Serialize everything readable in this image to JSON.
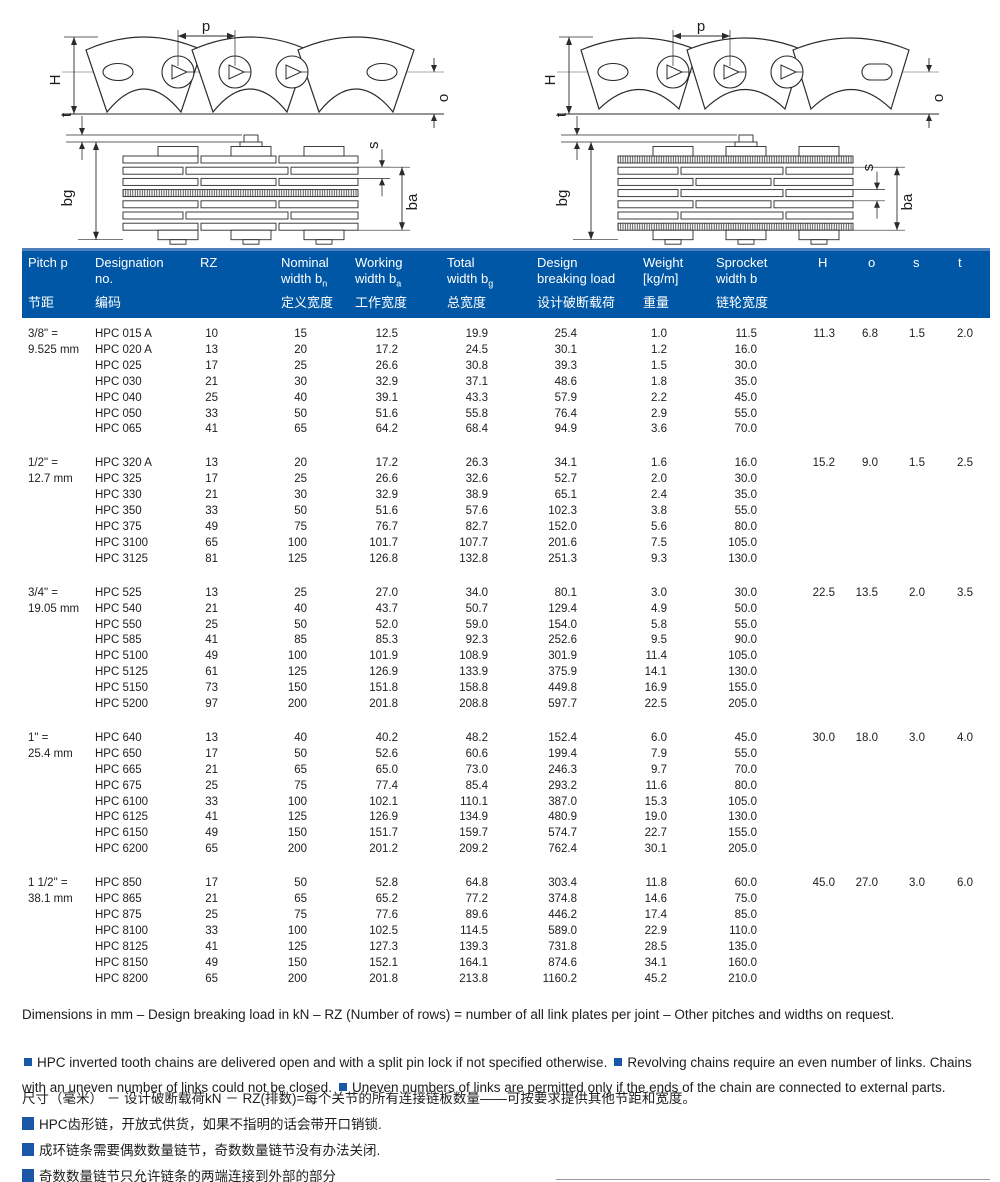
{
  "colors": {
    "header_bg": "#0057a6",
    "header_top_strip": "#4c80ba",
    "accent_blue": "#1b57a7",
    "body_text": "#1d1d1b"
  },
  "diagram": {
    "labels": {
      "p": "p",
      "H": "H",
      "o": "o",
      "t": "t",
      "s": "s",
      "bg": "bg",
      "ba": "ba"
    }
  },
  "table": {
    "header": {
      "cols": [
        {
          "en1": "Pitch p",
          "en2": "",
          "sub": "",
          "zh": "节距"
        },
        {
          "en1": "Designation",
          "en2": "no.",
          "sub": "",
          "zh": "编码"
        },
        {
          "en1": "RZ",
          "en2": "",
          "sub": "",
          "zh": ""
        },
        {
          "en1": "Nominal",
          "en2": "width b",
          "sub": "n",
          "zh": "定义宽度"
        },
        {
          "en1": "Working",
          "en2": "width b",
          "sub": "a",
          "zh": "工作宽度"
        },
        {
          "en1": "Total",
          "en2": "width b",
          "sub": "g",
          "zh": "总宽度"
        },
        {
          "en1": "Design",
          "en2": "breaking load",
          "sub": "",
          "zh": "设计破断载荷"
        },
        {
          "en1": "Weight",
          "en2": "[kg/m]",
          "sub": "",
          "zh": "重量"
        },
        {
          "en1": "Sprocket",
          "en2": "width b",
          "sub": "",
          "zh": "链轮宽度"
        },
        {
          "en1": "H",
          "en2": "",
          "sub": "",
          "zh": ""
        },
        {
          "en1": "o",
          "en2": "",
          "sub": "",
          "zh": ""
        },
        {
          "en1": "s",
          "en2": "",
          "sub": "",
          "zh": ""
        },
        {
          "en1": "t",
          "en2": "",
          "sub": "",
          "zh": ""
        }
      ]
    },
    "groups": [
      {
        "pitch": [
          "3/8\" =",
          "9.525 mm"
        ],
        "dims": {
          "H": "11.3",
          "o": "6.8",
          "s": "1.5",
          "t": "2.0"
        },
        "rows": [
          [
            "HPC 015 A",
            "10",
            "15",
            "12.5",
            "19.9",
            "25.4",
            "1.0",
            "11.5"
          ],
          [
            "HPC 020 A",
            "13",
            "20",
            "17.2",
            "24.5",
            "30.1",
            "1.2",
            "16.0"
          ],
          [
            "HPC 025",
            "17",
            "25",
            "26.6",
            "30.8",
            "39.3",
            "1.5",
            "30.0"
          ],
          [
            "HPC 030",
            "21",
            "30",
            "32.9",
            "37.1",
            "48.6",
            "1.8",
            "35.0"
          ],
          [
            "HPC 040",
            "25",
            "40",
            "39.1",
            "43.3",
            "57.9",
            "2.2",
            "45.0"
          ],
          [
            "HPC 050",
            "33",
            "50",
            "51.6",
            "55.8",
            "76.4",
            "2.9",
            "55.0"
          ],
          [
            "HPC 065",
            "41",
            "65",
            "64.2",
            "68.4",
            "94.9",
            "3.6",
            "70.0"
          ]
        ]
      },
      {
        "pitch": [
          "1/2\" =",
          "12.7 mm"
        ],
        "dims": {
          "H": "15.2",
          "o": "9.0",
          "s": "1.5",
          "t": "2.5"
        },
        "rows": [
          [
            "HPC 320 A",
            "13",
            "20",
            "17.2",
            "26.3",
            "34.1",
            "1.6",
            "16.0"
          ],
          [
            "HPC 325",
            "17",
            "25",
            "26.6",
            "32.6",
            "52.7",
            "2.0",
            "30.0"
          ],
          [
            "HPC 330",
            "21",
            "30",
            "32.9",
            "38.9",
            "65.1",
            "2.4",
            "35.0"
          ],
          [
            "HPC 350",
            "33",
            "50",
            "51.6",
            "57.6",
            "102.3",
            "3.8",
            "55.0"
          ],
          [
            "HPC 375",
            "49",
            "75",
            "76.7",
            "82.7",
            "152.0",
            "5.6",
            "80.0"
          ],
          [
            "HPC 3100",
            "65",
            "100",
            "101.7",
            "107.7",
            "201.6",
            "7.5",
            "105.0"
          ],
          [
            "HPC 3125",
            "81",
            "125",
            "126.8",
            "132.8",
            "251.3",
            "9.3",
            "130.0"
          ]
        ]
      },
      {
        "pitch": [
          "3/4\" =",
          "19.05 mm"
        ],
        "dims": {
          "H": "22.5",
          "o": "13.5",
          "s": "2.0",
          "t": "3.5"
        },
        "rows": [
          [
            "HPC 525",
            "13",
            "25",
            "27.0",
            "34.0",
            "80.1",
            "3.0",
            "30.0"
          ],
          [
            "HPC 540",
            "21",
            "40",
            "43.7",
            "50.7",
            "129.4",
            "4.9",
            "50.0"
          ],
          [
            "HPC 550",
            "25",
            "50",
            "52.0",
            "59.0",
            "154.0",
            "5.8",
            "55.0"
          ],
          [
            "HPC 585",
            "41",
            "85",
            "85.3",
            "92.3",
            "252.6",
            "9.5",
            "90.0"
          ],
          [
            "HPC 5100",
            "49",
            "100",
            "101.9",
            "108.9",
            "301.9",
            "11.4",
            "105.0"
          ],
          [
            "HPC 5125",
            "61",
            "125",
            "126.9",
            "133.9",
            "375.9",
            "14.1",
            "130.0"
          ],
          [
            "HPC 5150",
            "73",
            "150",
            "151.8",
            "158.8",
            "449.8",
            "16.9",
            "155.0"
          ],
          [
            "HPC 5200",
            "97",
            "200",
            "201.8",
            "208.8",
            "597.7",
            "22.5",
            "205.0"
          ]
        ]
      },
      {
        "pitch": [
          "1\" =",
          "25.4 mm"
        ],
        "dims": {
          "H": "30.0",
          "o": "18.0",
          "s": "3.0",
          "t": "4.0"
        },
        "rows": [
          [
            "HPC 640",
            "13",
            "40",
            "40.2",
            "48.2",
            "152.4",
            "6.0",
            "45.0"
          ],
          [
            "HPC 650",
            "17",
            "50",
            "52.6",
            "60.6",
            "199.4",
            "7.9",
            "55.0"
          ],
          [
            "HPC 665",
            "21",
            "65",
            "65.0",
            "73.0",
            "246.3",
            "9.7",
            "70.0"
          ],
          [
            "HPC 675",
            "25",
            "75",
            "77.4",
            "85.4",
            "293.2",
            "11.6",
            "80.0"
          ],
          [
            "HPC 6100",
            "33",
            "100",
            "102.1",
            "110.1",
            "387.0",
            "15.3",
            "105.0"
          ],
          [
            "HPC 6125",
            "41",
            "125",
            "126.9",
            "134.9",
            "480.9",
            "19.0",
            "130.0"
          ],
          [
            "HPC 6150",
            "49",
            "150",
            "151.7",
            "159.7",
            "574.7",
            "22.7",
            "155.0"
          ],
          [
            "HPC 6200",
            "65",
            "200",
            "201.2",
            "209.2",
            "762.4",
            "30.1",
            "205.0"
          ]
        ]
      },
      {
        "pitch": [
          "1 1/2\" =",
          "38.1 mm"
        ],
        "dims": {
          "H": "45.0",
          "o": "27.0",
          "s": "3.0",
          "t": "6.0"
        },
        "rows": [
          [
            "HPC 850",
            "17",
            "50",
            "52.8",
            "64.8",
            "303.4",
            "11.8",
            "60.0"
          ],
          [
            "HPC 865",
            "21",
            "65",
            "65.2",
            "77.2",
            "374.8",
            "14.6",
            "75.0"
          ],
          [
            "HPC 875",
            "25",
            "75",
            "77.6",
            "89.6",
            "446.2",
            "17.4",
            "85.0"
          ],
          [
            "HPC 8100",
            "33",
            "100",
            "102.5",
            "114.5",
            "589.0",
            "22.9",
            "110.0"
          ],
          [
            "HPC 8125",
            "41",
            "125",
            "127.3",
            "139.3",
            "731.8",
            "28.5",
            "135.0"
          ],
          [
            "HPC 8150",
            "49",
            "150",
            "152.1",
            "164.1",
            "874.6",
            "34.1",
            "160.0"
          ],
          [
            "HPC 8200",
            "65",
            "200",
            "201.8",
            "213.8",
            "1160.2",
            "45.2",
            "210.0"
          ]
        ]
      }
    ]
  },
  "notes": {
    "dimensions_en": "Dimensions in mm – Design breaking load in kN – RZ (Number of rows) = number of all link plates per joint – Other pitches and widths on request.",
    "bullets_en": [
      "HPC inverted tooth chains are delivered open and with a split pin lock if not specified otherwise.",
      "Revolving chains require an even number of links. Chains with an uneven number of links could not be closed.",
      "Uneven numbers of links are permitted only if the ends of the chain are connected to external parts."
    ],
    "dimensions_zh": "尺寸（毫米） － 设计破断载荷kN － RZ(排数)=每个关节的所有连接链板数量——可按要求提供其他节距和宽度。",
    "bullets_zh": [
      "HPC齿形链，开放式供货，如果不指明的话会带开口销锁.",
      "成环链条需要偶数数量链节，奇数数量链节没有办法关闭.",
      "奇数数量链节只允许链条的两端连接到外部的部分"
    ]
  }
}
